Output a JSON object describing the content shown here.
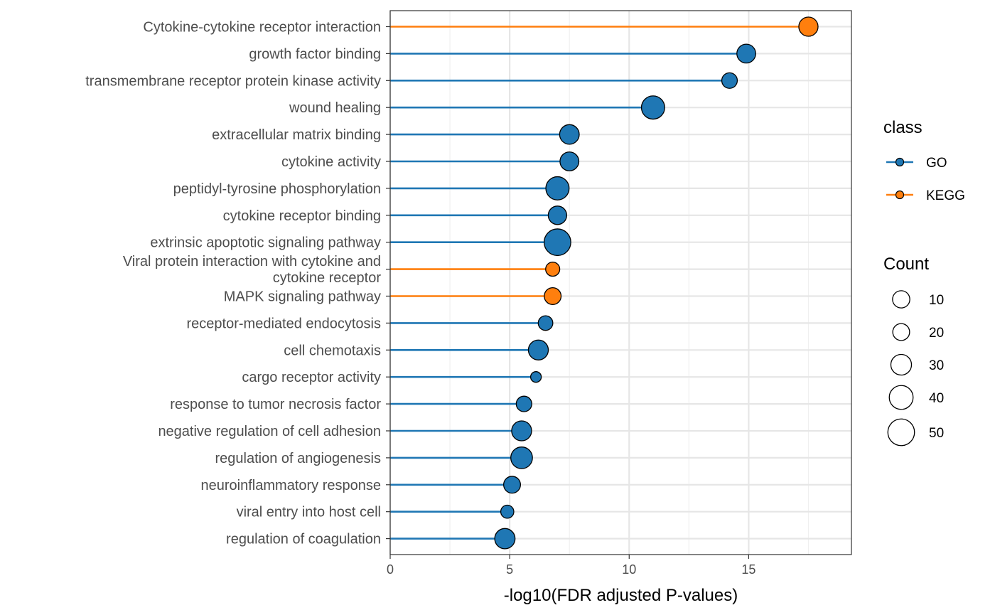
{
  "chart_data": {
    "type": "lollipop",
    "xlabel": "-log10(FDR adjusted P-values)",
    "ylabel": "",
    "xlim": [
      0,
      19.3
    ],
    "xticks": [
      0,
      5,
      10,
      15
    ],
    "x_minor_gridlines": [
      2.5,
      7.5,
      12.5,
      17.5
    ],
    "grid": true,
    "colors": {
      "GO": "#1f77b4",
      "KEGG": "#ff7f0e"
    },
    "items": [
      {
        "label": "Cytokine-cytokine receptor interaction",
        "value": 17.5,
        "class": "KEGG",
        "count": 26
      },
      {
        "label": "growth factor binding",
        "value": 14.9,
        "class": "GO",
        "count": 25
      },
      {
        "label": "transmembrane receptor protein kinase activity",
        "value": 14.2,
        "class": "GO",
        "count": 17
      },
      {
        "label": "wound healing",
        "value": 11.0,
        "class": "GO",
        "count": 38
      },
      {
        "label": "extracellular matrix binding",
        "value": 7.5,
        "class": "GO",
        "count": 27
      },
      {
        "label": "cytokine activity",
        "value": 7.5,
        "class": "GO",
        "count": 25
      },
      {
        "label": "peptidyl-tyrosine phosphorylation",
        "value": 7.0,
        "class": "GO",
        "count": 38
      },
      {
        "label": "cytokine receptor binding",
        "value": 7.0,
        "class": "GO",
        "count": 24
      },
      {
        "label": "extrinsic apoptotic signaling pathway",
        "value": 7.0,
        "class": "GO",
        "count": 50
      },
      {
        "label": "Viral protein interaction with cytokine and\ncytokine receptor",
        "value": 6.8,
        "class": "KEGG",
        "count": 14
      },
      {
        "label": "MAPK signaling pathway",
        "value": 6.8,
        "class": "KEGG",
        "count": 20
      },
      {
        "label": "receptor-mediated endocytosis",
        "value": 6.5,
        "class": "GO",
        "count": 15
      },
      {
        "label": "cell chemotaxis",
        "value": 6.2,
        "class": "GO",
        "count": 28
      },
      {
        "label": "cargo receptor activity",
        "value": 6.1,
        "class": "GO",
        "count": 8
      },
      {
        "label": "response to tumor necrosis factor",
        "value": 5.6,
        "class": "GO",
        "count": 17
      },
      {
        "label": "negative regulation of cell adhesion",
        "value": 5.5,
        "class": "GO",
        "count": 28
      },
      {
        "label": "regulation of angiogenesis",
        "value": 5.5,
        "class": "GO",
        "count": 33
      },
      {
        "label": "neuroinflammatory response",
        "value": 5.1,
        "class": "GO",
        "count": 20
      },
      {
        "label": "viral entry into host cell",
        "value": 4.9,
        "class": "GO",
        "count": 12
      },
      {
        "label": "regulation of coagulation",
        "value": 4.8,
        "class": "GO",
        "count": 29
      }
    ],
    "legend": {
      "class_title": "class",
      "class_entries": [
        "GO",
        "KEGG"
      ],
      "count_title": "Count",
      "count_entries": [
        10,
        20,
        30,
        40,
        50
      ]
    }
  }
}
